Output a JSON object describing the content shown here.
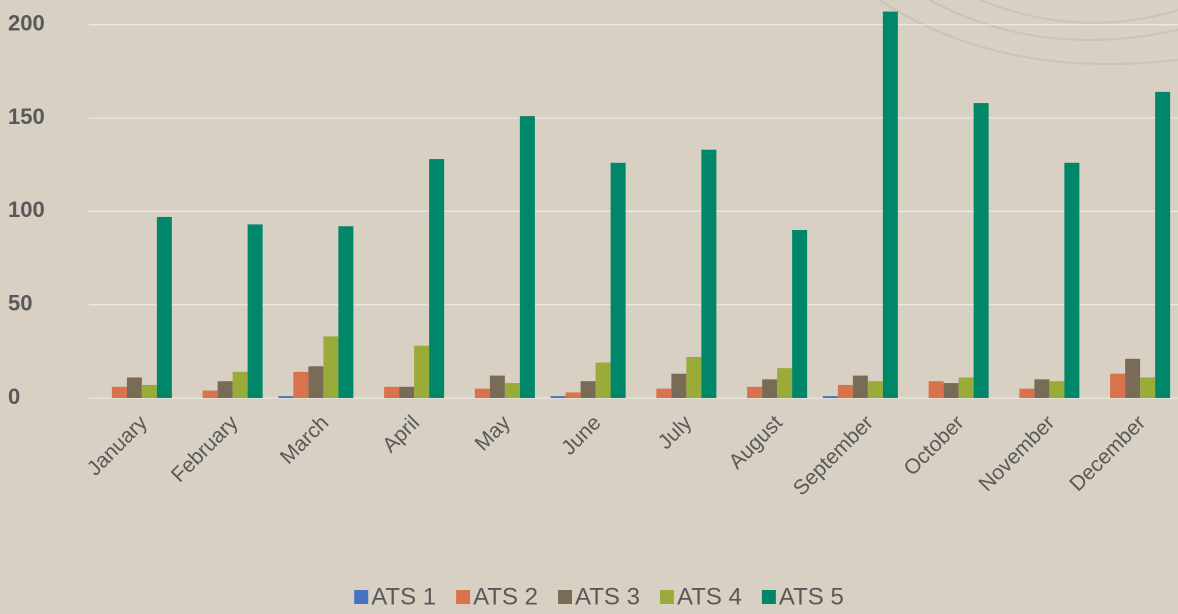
{
  "chart_data": {
    "type": "bar",
    "categories": [
      "January",
      "February",
      "March",
      "April",
      "May",
      "June",
      "July",
      "August",
      "September",
      "October",
      "November",
      "December"
    ],
    "series": [
      {
        "name": "ATS 1",
        "color": "#4472c4",
        "values": [
          0,
          0,
          1,
          0,
          0,
          1,
          0,
          0,
          1,
          0,
          0,
          0
        ]
      },
      {
        "name": "ATS 2",
        "color": "#d9734e",
        "values": [
          6,
          4,
          14,
          6,
          5,
          3,
          5,
          6,
          7,
          9,
          5,
          13
        ]
      },
      {
        "name": "ATS 3",
        "color": "#7a6b57",
        "values": [
          11,
          9,
          17,
          6,
          12,
          9,
          13,
          10,
          12,
          8,
          10,
          21
        ]
      },
      {
        "name": "ATS 4",
        "color": "#9aab3a",
        "values": [
          7,
          14,
          33,
          28,
          8,
          19,
          22,
          16,
          9,
          11,
          9,
          11
        ]
      },
      {
        "name": "ATS 5",
        "color": "#00876a",
        "values": [
          97,
          93,
          92,
          128,
          151,
          126,
          133,
          90,
          207,
          158,
          126,
          164
        ]
      }
    ],
    "ylim": [
      0,
      210
    ],
    "yticks": [
      0,
      50,
      100,
      150,
      200
    ],
    "grid": true,
    "legend": "bottom"
  }
}
